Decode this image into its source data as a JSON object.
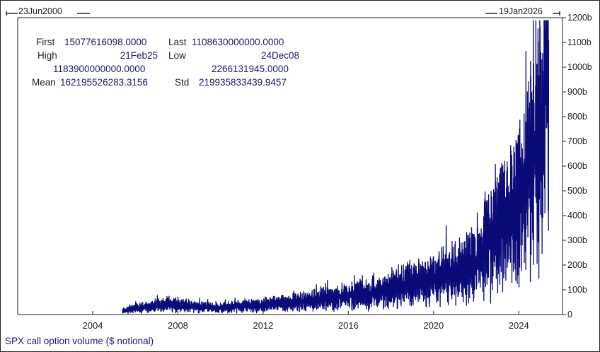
{
  "range": {
    "start_label": "23Jun2000",
    "end_label": "19Jan2026"
  },
  "stats": {
    "first_label": "First",
    "first_value": "15077616098.0000",
    "last_label": "Last",
    "last_value": "1108630000000.0000",
    "high_label": "High",
    "high_date": "21Feb25",
    "high_value": "1183900000000.0000",
    "low_label": "Low",
    "low_date": "24Dec08",
    "low_value": "2266131945.0000",
    "mean_label": "Mean",
    "mean_value": "162195526283.3156",
    "std_label": "Std",
    "std_value": "219935833439.9457"
  },
  "footer": {
    "title": "SPX call option volume ($ notional)"
  },
  "chart_data": {
    "type": "line",
    "title": "SPX call option volume ($ notional)",
    "xlabel": "",
    "ylabel": "",
    "x_range": [
      2000.48,
      2026.05
    ],
    "ylim": [
      0,
      1200
    ],
    "y_unit": "b",
    "x_ticks": [
      2004,
      2008,
      2012,
      2016,
      2020,
      2024
    ],
    "x_tick_labels": [
      "2004",
      "2008",
      "2012",
      "2016",
      "2020",
      "2024"
    ],
    "y_ticks": [
      0,
      100,
      200,
      300,
      400,
      500,
      600,
      700,
      800,
      900,
      1000,
      1100,
      1200
    ],
    "y_tick_labels": [
      "0",
      "100b",
      "200b",
      "300b",
      "400b",
      "500b",
      "600b",
      "700b",
      "800b",
      "900b",
      "1000b",
      "1100b",
      "1200b"
    ],
    "grid": false,
    "color": "#0a0a78",
    "series": [
      {
        "x": [
          2005.4,
          2006.0,
          2007.0,
          2007.6,
          2008.0,
          2009.0,
          2010.0,
          2011.0,
          2012.0,
          2013.0,
          2014.0,
          2015.0,
          2016.0,
          2017.0,
          2018.0,
          2018.5,
          2019.0,
          2020.0,
          2020.3,
          2021.0,
          2021.5,
          2022.0,
          2022.5,
          2023.0,
          2023.5,
          2024.0,
          2024.5,
          2025.1,
          2025.4
        ],
        "y": [
          15,
          25,
          35,
          45,
          40,
          30,
          28,
          33,
          38,
          45,
          55,
          65,
          75,
          85,
          100,
          120,
          125,
          130,
          160,
          170,
          190,
          220,
          280,
          350,
          400,
          480,
          600,
          800,
          1110
        ]
      }
    ]
  }
}
